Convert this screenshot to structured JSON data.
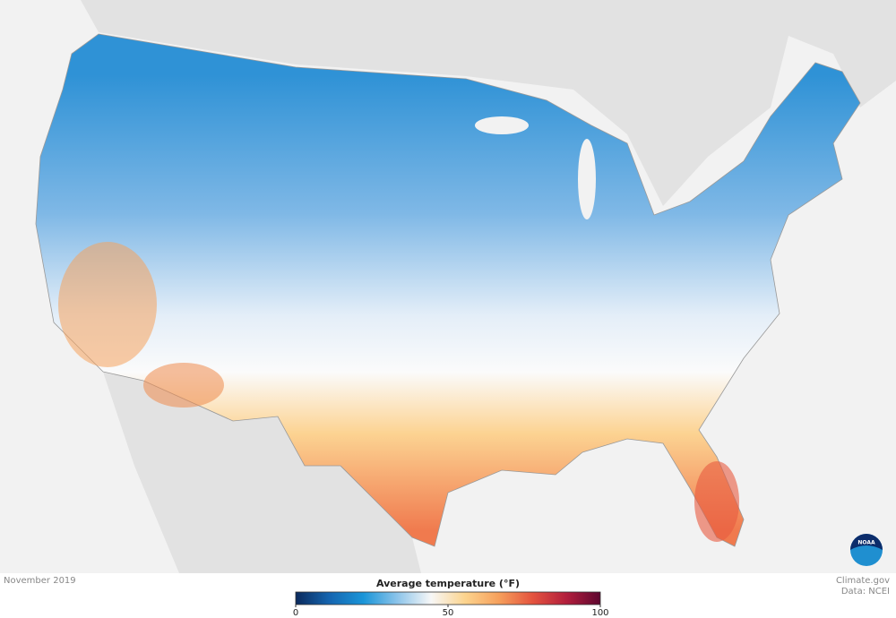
{
  "caption": "November 2019",
  "credit": {
    "site": "Climate.gov",
    "source": "Data: NCEI",
    "logo": "NOAA"
  },
  "legend": {
    "title": "Average temperature (°F)",
    "range": [
      0,
      100
    ],
    "ticks": [
      0,
      50,
      100
    ],
    "colors": [
      "#0b2a5c",
      "#1565b0",
      "#1a95d8",
      "#8cc4ea",
      "#f7f7f7",
      "#fcd48e",
      "#f6a05c",
      "#e4533e",
      "#b21e3c",
      "#5e0730"
    ]
  }
}
